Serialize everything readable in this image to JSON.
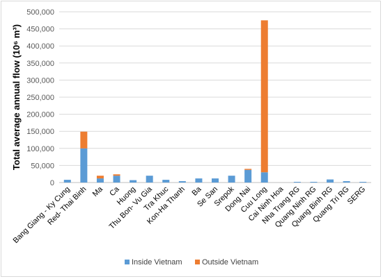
{
  "chart_data": {
    "type": "bar",
    "stacked": true,
    "ylabel": "Total average annual flow (10⁶ m³)",
    "ylim": [
      0,
      500000
    ],
    "ytick_labels": [
      "0",
      "50,000",
      "100,000",
      "150,000",
      "200,000",
      "250,000",
      "300,000",
      "350,000",
      "400,000",
      "450,000",
      "500,000"
    ],
    "grid": true,
    "legend_position": "bottom",
    "categories": [
      "Bang Giang - Ky Cung",
      "Red- Thai Binh",
      "Ma",
      "Ca",
      "Huong",
      "Thu Bon- Vu Gia",
      "Tra Khuc",
      "Kon-Ha Thanh",
      "Ba",
      "Se San",
      "Srepok",
      "Dong Nai",
      "Cuu Long",
      "Cai Ninh Hoa",
      "Nha Trang RG",
      "Quang Ninh RG",
      "Quang Binh RG",
      "Quang Tri RG",
      "SERG"
    ],
    "series": [
      {
        "name": "Inside Vietnam",
        "color": "#5b9bd5",
        "values": [
          8000,
          100000,
          12000,
          20000,
          7000,
          20000,
          8000,
          4000,
          12000,
          12000,
          20000,
          37000,
          30000,
          0,
          2000,
          2000,
          9000,
          4000,
          2000
        ]
      },
      {
        "name": "Outside Vietnam",
        "color": "#ed7d31",
        "values": [
          0,
          49000,
          8000,
          4000,
          0,
          0,
          0,
          0,
          0,
          0,
          0,
          3000,
          445000,
          0,
          0,
          0,
          0,
          0,
          0
        ]
      }
    ]
  }
}
